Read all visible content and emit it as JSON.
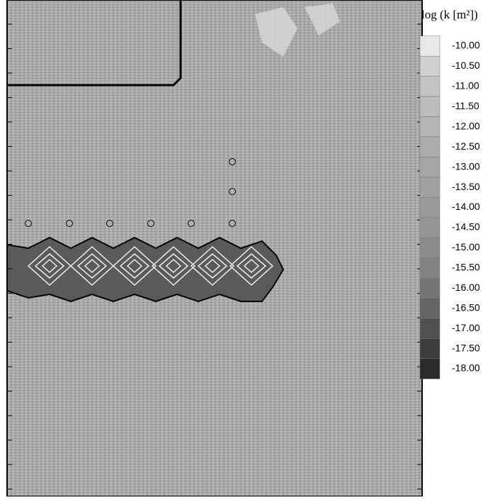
{
  "chart_data": {
    "type": "contour",
    "colorbar": {
      "title": "log (k [m²])",
      "ticks": [
        {
          "value": -10,
          "label": "-10.00"
        },
        {
          "value": -10.5,
          "label": "-10.50"
        },
        {
          "value": -11,
          "label": "-11.00"
        },
        {
          "value": -11.5,
          "label": "-11.50"
        },
        {
          "value": -12,
          "label": "-12.00"
        },
        {
          "value": -12.5,
          "label": "-12.50"
        },
        {
          "value": -13,
          "label": "-13.00"
        },
        {
          "value": -13.5,
          "label": "-13.50"
        },
        {
          "value": -14,
          "label": "-14.00"
        },
        {
          "value": -14.5,
          "label": "-14.50"
        },
        {
          "value": -15,
          "label": "-15.00"
        },
        {
          "value": -15.5,
          "label": "-15.50"
        },
        {
          "value": -16,
          "label": "-16.00"
        },
        {
          "value": -16.5,
          "label": "-16.50"
        },
        {
          "value": -17,
          "label": "-17.00"
        },
        {
          "value": -17.5,
          "label": "-17.50"
        },
        {
          "value": -18,
          "label": "-18.00"
        }
      ],
      "colors": [
        "#e8e8e8",
        "#d0d0d0",
        "#c4c4c4",
        "#bcbcbc",
        "#b4b4b4",
        "#acacac",
        "#a6a6a6",
        "#a0a0a0",
        "#9a9a9a",
        "#949494",
        "#8c8c8c",
        "#828282",
        "#747474",
        "#646464",
        "#505050",
        "#3c3c3c",
        "#2a2a2a"
      ]
    }
  }
}
